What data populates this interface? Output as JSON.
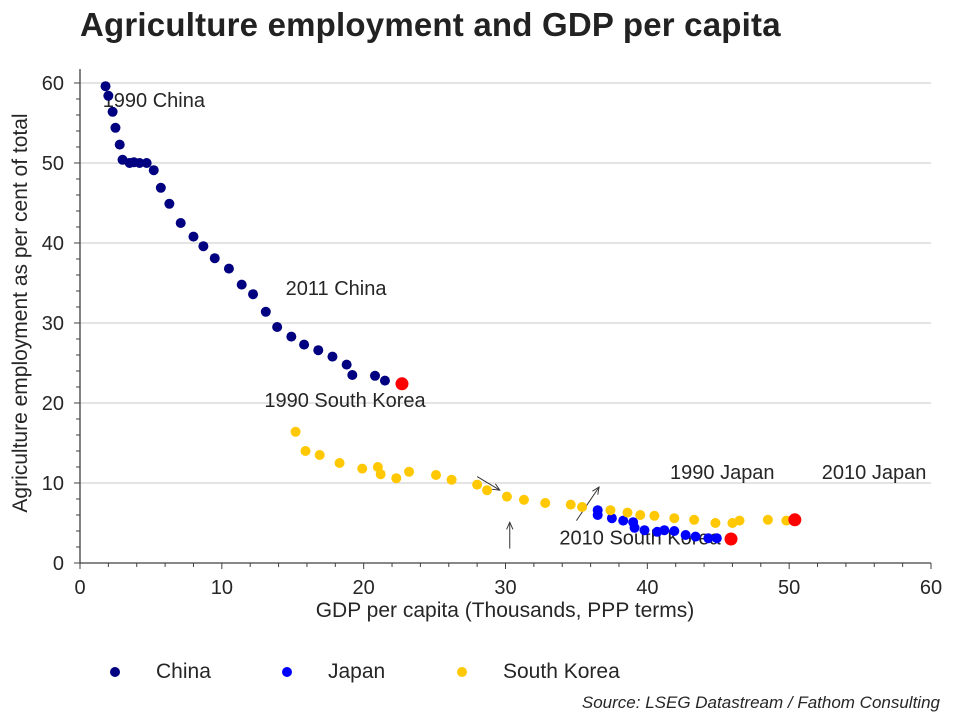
{
  "title": "Agriculture employment and GDP per capita",
  "source": "Source: LSEG Datastream / Fathom Consulting",
  "colors": {
    "China": "#000080",
    "Japan": "#0000FF",
    "South Korea": "#FFC800",
    "highlight": "#FF0000",
    "grid": "#C8C8C8",
    "axis": "#404040"
  },
  "legend": [
    {
      "label": "China",
      "color": "#000080"
    },
    {
      "label": "Japan",
      "color": "#0000FF"
    },
    {
      "label": "South Korea",
      "color": "#FFC800"
    }
  ],
  "chart_data": {
    "type": "scatter",
    "title": "Agriculture employment and GDP per capita",
    "xlabel": "GDP per capita (Thousands, PPP terms)",
    "ylabel": "Agriculture employment as per cent of total",
    "xlim": [
      0,
      60
    ],
    "ylim": [
      0,
      60
    ],
    "xticks": [
      0,
      10,
      20,
      30,
      40,
      50,
      60
    ],
    "yticks": [
      0,
      10,
      20,
      30,
      40,
      50,
      60
    ],
    "grid": "horizontal",
    "legend_position": "bottom",
    "series": [
      {
        "name": "China",
        "color": "#000080",
        "points": [
          [
            1.8,
            59.6
          ],
          [
            2.0,
            58.4
          ],
          [
            2.3,
            56.4
          ],
          [
            2.5,
            54.4
          ],
          [
            2.8,
            52.3
          ],
          [
            3.0,
            50.4
          ],
          [
            3.5,
            50.0
          ],
          [
            3.8,
            50.1
          ],
          [
            4.2,
            50.0
          ],
          [
            4.7,
            50.0
          ],
          [
            5.2,
            49.1
          ],
          [
            5.7,
            46.9
          ],
          [
            6.3,
            44.9
          ],
          [
            7.1,
            42.5
          ],
          [
            8.0,
            40.8
          ],
          [
            8.7,
            39.6
          ],
          [
            9.5,
            38.1
          ],
          [
            10.5,
            36.8
          ],
          [
            11.4,
            34.8
          ],
          [
            12.2,
            33.6
          ],
          [
            13.1,
            31.4
          ],
          [
            13.9,
            29.5
          ],
          [
            14.9,
            28.3
          ],
          [
            15.8,
            27.3
          ],
          [
            16.8,
            26.6
          ],
          [
            17.8,
            25.8
          ],
          [
            18.8,
            24.8
          ],
          [
            19.2,
            23.5
          ],
          [
            20.8,
            23.4
          ],
          [
            21.5,
            22.8
          ]
        ],
        "highlight": [
          22.7,
          22.4
        ]
      },
      {
        "name": "Japan",
        "color": "#0000FF",
        "points": [
          [
            36.5,
            6.6
          ],
          [
            36.5,
            6.0
          ],
          [
            37.5,
            5.6
          ],
          [
            38.3,
            5.3
          ],
          [
            39.0,
            5.1
          ],
          [
            39.1,
            4.4
          ],
          [
            39.8,
            4.1
          ],
          [
            40.7,
            3.9
          ],
          [
            41.2,
            4.1
          ],
          [
            41.9,
            4.0
          ],
          [
            42.7,
            3.5
          ],
          [
            43.4,
            3.3
          ],
          [
            44.3,
            3.1
          ],
          [
            44.9,
            3.1
          ]
        ],
        "highlight": [
          45.9,
          3.0
        ]
      },
      {
        "name": "South Korea",
        "color": "#FFC800",
        "points": [
          [
            15.2,
            16.4
          ],
          [
            15.9,
            14.0
          ],
          [
            16.9,
            13.5
          ],
          [
            18.3,
            12.5
          ],
          [
            19.9,
            11.8
          ],
          [
            21.0,
            12.0
          ],
          [
            21.2,
            11.1
          ],
          [
            22.3,
            10.6
          ],
          [
            23.2,
            11.4
          ],
          [
            25.1,
            11.0
          ],
          [
            26.2,
            10.4
          ],
          [
            28.0,
            9.8
          ],
          [
            28.7,
            9.1
          ],
          [
            30.1,
            8.3
          ],
          [
            31.3,
            7.9
          ],
          [
            32.8,
            7.5
          ],
          [
            34.6,
            7.3
          ],
          [
            35.4,
            7.0
          ],
          [
            37.4,
            6.6
          ],
          [
            38.6,
            6.3
          ],
          [
            39.5,
            6.0
          ],
          [
            40.5,
            5.9
          ],
          [
            41.9,
            5.6
          ],
          [
            43.3,
            5.4
          ],
          [
            44.8,
            5.0
          ],
          [
            46.0,
            5.0
          ],
          [
            46.5,
            5.3
          ],
          [
            48.5,
            5.4
          ],
          [
            49.8,
            5.3
          ]
        ],
        "highlight": [
          50.4,
          5.4
        ]
      }
    ],
    "annotations": [
      {
        "text": "1990 China",
        "x": 1.6,
        "y": 57.0
      },
      {
        "text": "2011 China",
        "x": 14.5,
        "y": 33.5
      },
      {
        "text": "1990 South Korea",
        "x": 13.0,
        "y": 19.5
      },
      {
        "text": "2010 South Korea",
        "x": 33.8,
        "y": 2.3
      },
      {
        "text": "1990 Japan",
        "x": 41.6,
        "y": 10.5
      },
      {
        "text": "2010 Japan",
        "x": 52.3,
        "y": 10.5
      }
    ],
    "arrows": [
      {
        "from": [
          28.0,
          10.8
        ],
        "to": [
          29.6,
          9.1
        ]
      },
      {
        "from": [
          30.3,
          1.8
        ],
        "to": [
          30.3,
          5.1
        ]
      },
      {
        "from": [
          35.0,
          5.3
        ],
        "to": [
          36.6,
          9.5
        ]
      }
    ]
  }
}
